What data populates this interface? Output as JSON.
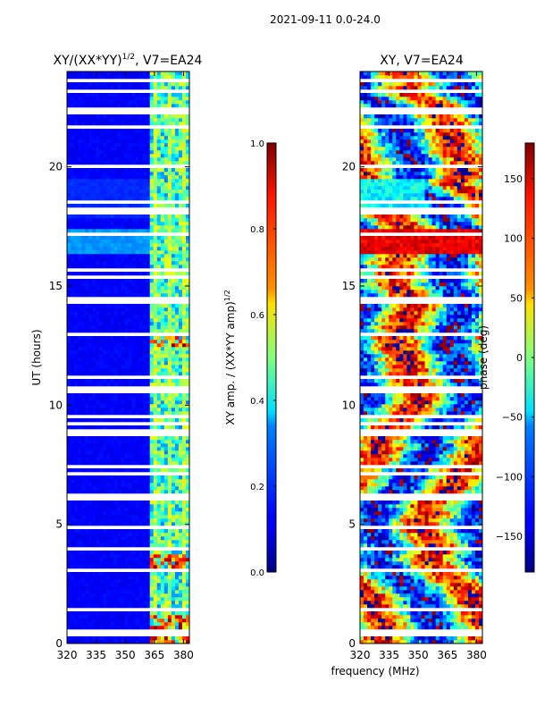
{
  "suptitle": "2021-09-11 0.0-24.0",
  "shared_xlabel": "frequency (MHz)",
  "chart_data": [
    {
      "type": "heatmap",
      "title": "XY/(XX*YY)",
      "title_exponent": "1/2",
      "title_suffix": ", V7=EA24",
      "xlabel": "",
      "ylabel": "UT (hours)",
      "xlim": [
        320,
        383
      ],
      "ylim": [
        0,
        24
      ],
      "xticks": [
        320,
        335,
        350,
        365,
        380
      ],
      "yticks": [
        0,
        5,
        10,
        15,
        20
      ],
      "colorbar": {
        "label": "XY amp. / (XX*YY amp)",
        "label_exponent": "1/2",
        "range": [
          0.0,
          1.0
        ],
        "ticks": [
          "0.0",
          "0.2",
          "0.4",
          "0.6",
          "0.8",
          "1.0"
        ],
        "tick_values": [
          0.0,
          0.2,
          0.4,
          0.6,
          0.8,
          1.0
        ]
      },
      "colormap": "jet"
    },
    {
      "type": "heatmap",
      "title": "XY, V7=EA24",
      "xlabel": "",
      "ylabel": "",
      "xlim": [
        320,
        383
      ],
      "ylim": [
        0,
        24
      ],
      "xticks": [
        320,
        335,
        350,
        365,
        380
      ],
      "yticks": [
        0,
        5,
        10,
        15,
        20
      ],
      "colorbar": {
        "label": "phase (deg)",
        "range": [
          -180,
          180
        ],
        "ticks": [
          "−150",
          "−100",
          "−50",
          "0",
          "50",
          "100",
          "150"
        ],
        "tick_values": [
          -150,
          -100,
          -50,
          0,
          50,
          100,
          150
        ]
      },
      "colormap": "jet"
    }
  ]
}
